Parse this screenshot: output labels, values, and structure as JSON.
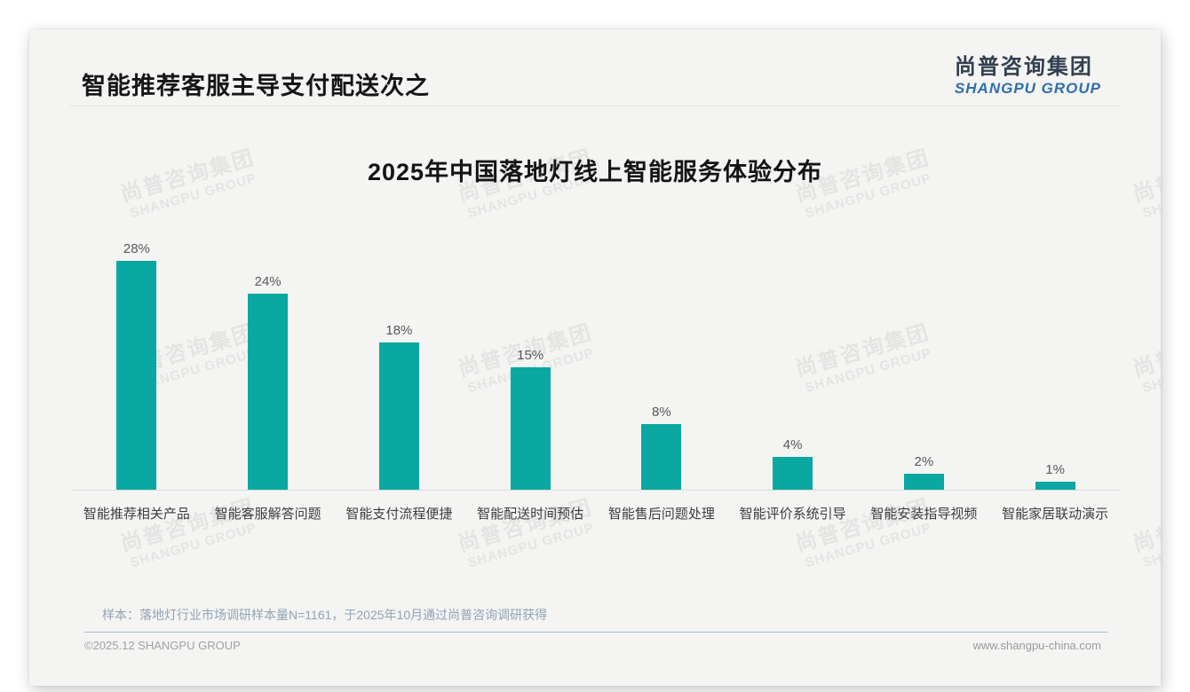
{
  "header": {
    "title": "智能推荐客服主导支付配送次之"
  },
  "logo": {
    "zh": "尚普咨询集团",
    "en": "SHANGPU GROUP",
    "zh_color": "#333f4f",
    "en_color": "#2e6fac"
  },
  "watermark": {
    "zh": "尚普咨询集团",
    "en": "SHANGPU GROUP"
  },
  "chart_data": {
    "type": "bar",
    "title": "2025年中国落地灯线上智能服务体验分布",
    "categories": [
      "智能推荐相关产品",
      "智能客服解答问题",
      "智能支付流程便捷",
      "智能配送时间预估",
      "智能售后问题处理",
      "智能评价系统引导",
      "智能安装指导视频",
      "智能家居联动演示"
    ],
    "values": [
      28,
      24,
      18,
      15,
      8,
      4,
      2,
      1
    ],
    "unit": "%",
    "bar_color": "#0aa8a1",
    "value_label_color": "#595959",
    "xlabel": "",
    "ylabel": "",
    "ylim": [
      0,
      30
    ],
    "grid": false,
    "legend": false,
    "value_labels_shown": true
  },
  "note": "样本：落地灯行业市场调研样本量N=1161，于2025年10月通过尚普咨询调研获得",
  "footer": {
    "copyright": "©2025.12 SHANGPU GROUP",
    "website": "www.shangpu-china.com"
  }
}
